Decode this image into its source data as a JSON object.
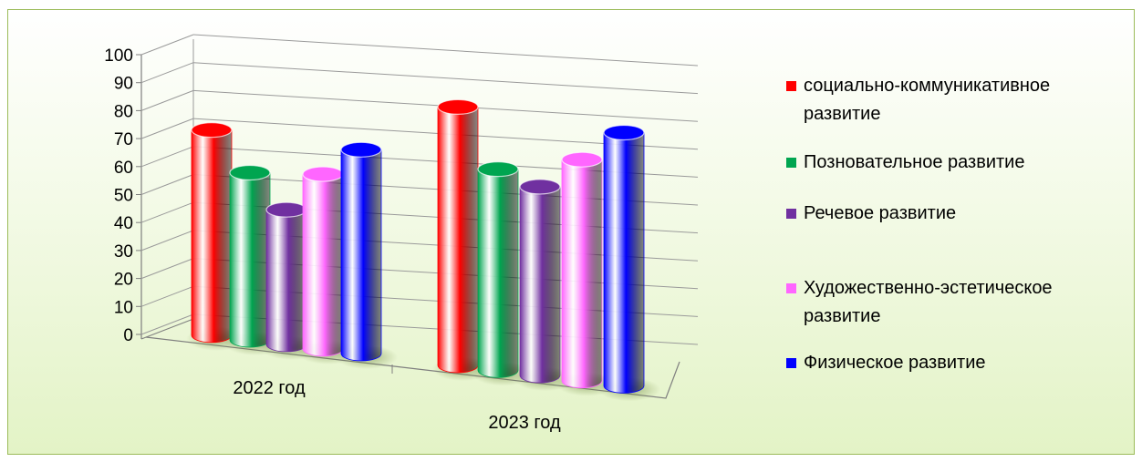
{
  "chart_data": {
    "type": "bar",
    "categories": [
      "2022 год",
      "2023 год"
    ],
    "yticks": [
      "0",
      "10",
      "20",
      "30",
      "40",
      "50",
      "60",
      "70",
      "80",
      "90",
      "100"
    ],
    "ylim": [
      0,
      100
    ],
    "grid": true,
    "legend_position": "right",
    "style": "3d-cylinder",
    "series": [
      {
        "name": "социально-коммуникативное развитие",
        "values": [
          80,
          90
        ],
        "color": "#ff0000"
      },
      {
        "name": "Позновательное развитие",
        "values": [
          65,
          68
        ],
        "color": "#00a550"
      },
      {
        "name": "Речевое развитие",
        "values": [
          52,
          62
        ],
        "color": "#7030a0"
      },
      {
        "name": "Художественно-эстетическое развитие",
        "values": [
          65,
          72
        ],
        "color": "#ff66ff"
      },
      {
        "name": "Физическое развитие",
        "values": [
          74,
          82
        ],
        "color": "#0000ff"
      }
    ]
  }
}
